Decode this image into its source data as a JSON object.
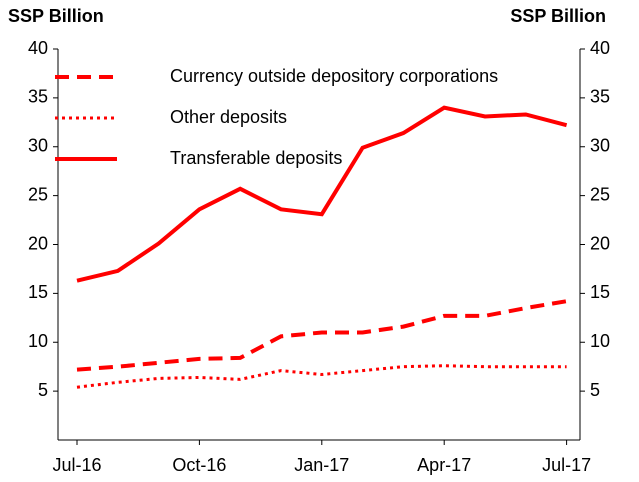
{
  "chart_data": {
    "type": "line",
    "y_label": "SSP Billion",
    "y2_label": "SSP Billion",
    "categories": [
      "Jul-16",
      null,
      null,
      "Oct-16",
      null,
      null,
      "Jan-17",
      null,
      null,
      "Apr-17",
      null,
      null,
      "Jul-17"
    ],
    "series": [
      {
        "name": "Currency outside depository corporations",
        "color": "#ff0000",
        "style": "dashed",
        "values": [
          7.2,
          7.5,
          7.9,
          8.3,
          8.4,
          10.6,
          11.0,
          11.0,
          11.6,
          12.7,
          12.7,
          13.5,
          14.2
        ]
      },
      {
        "name": "Other deposits",
        "color": "#ff0000",
        "style": "dotted",
        "values": [
          5.4,
          5.9,
          6.3,
          6.4,
          6.2,
          7.1,
          6.7,
          7.1,
          7.5,
          7.6,
          7.5,
          7.5,
          7.5
        ]
      },
      {
        "name": "Transferable deposits",
        "color": "#ff0000",
        "style": "solid",
        "values": [
          16.3,
          17.3,
          20.1,
          23.6,
          25.7,
          23.6,
          23.1,
          29.9,
          31.4,
          34.0,
          33.1,
          33.3,
          32.2
        ]
      }
    ],
    "ylim": [
      0,
      40
    ],
    "yticks": [
      5,
      10,
      15,
      20,
      25,
      30,
      35,
      40
    ],
    "y2lim": [
      0,
      40
    ],
    "y2ticks": [
      5,
      10,
      15,
      20,
      25,
      30,
      35,
      40
    ],
    "legend": "top-left"
  }
}
